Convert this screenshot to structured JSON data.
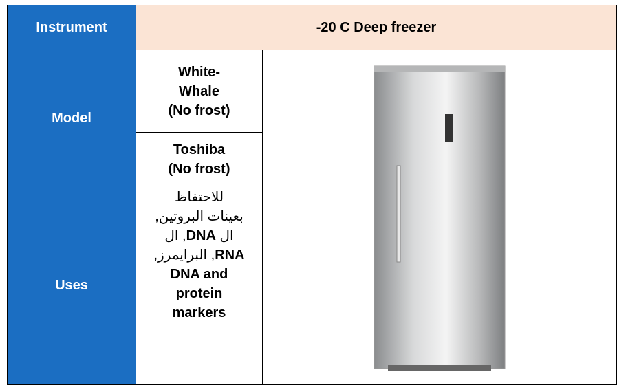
{
  "header": {
    "label": "Instrument",
    "value": "-20 C Deep freezer"
  },
  "model": {
    "label": "Model",
    "items": [
      [
        "White-",
        "Whale",
        "(No frost)"
      ],
      [
        "Toshiba",
        "(No frost)"
      ]
    ]
  },
  "uses": {
    "label": "Uses",
    "lines": [
      [
        {
          "text": "للاحتفاظ",
          "bold": false
        }
      ],
      [
        {
          "text": "بعينات البروتين,",
          "bold": false
        }
      ],
      [
        {
          "text": "ال ",
          "bold": false
        },
        {
          "text": "DNA",
          "bold": true
        },
        {
          "text": ", ال",
          "bold": false
        }
      ],
      [
        {
          "text": "RNA",
          "bold": true
        },
        {
          "text": ", البرايمرز,",
          "bold": false
        }
      ],
      [
        {
          "text": "DNA and",
          "bold": true
        }
      ],
      [
        {
          "text": "protein",
          "bold": true
        }
      ],
      [
        {
          "text": "markers",
          "bold": true
        }
      ]
    ]
  }
}
